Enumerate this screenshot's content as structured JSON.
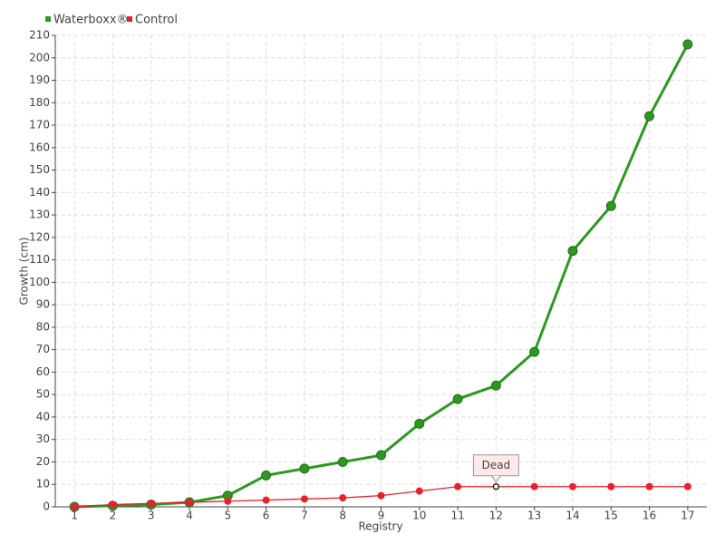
{
  "chart_data": {
    "type": "line",
    "x_label": "Registry",
    "y_label": "Growth (cm)",
    "categories": [
      "1",
      "2",
      "3",
      "4",
      "5",
      "6",
      "7",
      "8",
      "9",
      "10",
      "11",
      "12",
      "13",
      "14",
      "15",
      "16",
      "17"
    ],
    "series": [
      {
        "name": "Waterboxx®",
        "color": "#2a9a1e",
        "values": [
          0,
          0.5,
          1,
          2,
          5,
          14,
          17,
          20,
          23,
          37,
          48,
          54,
          69,
          114,
          134,
          174,
          206
        ]
      },
      {
        "name": "Control",
        "color": "#e8202e",
        "values": [
          0,
          1,
          1.5,
          2,
          2.5,
          3,
          3.5,
          4,
          5,
          7,
          9,
          9,
          9,
          9,
          9,
          9,
          9
        ]
      }
    ],
    "annotations": [
      {
        "text": "Dead",
        "x": "12",
        "y": 9
      }
    ],
    "ylim": [
      0,
      210
    ],
    "yticks": [
      0,
      10,
      20,
      30,
      40,
      50,
      60,
      70,
      80,
      90,
      100,
      110,
      120,
      130,
      140,
      150,
      160,
      170,
      180,
      190,
      200,
      210
    ],
    "grid": true,
    "legend": "top-left"
  }
}
